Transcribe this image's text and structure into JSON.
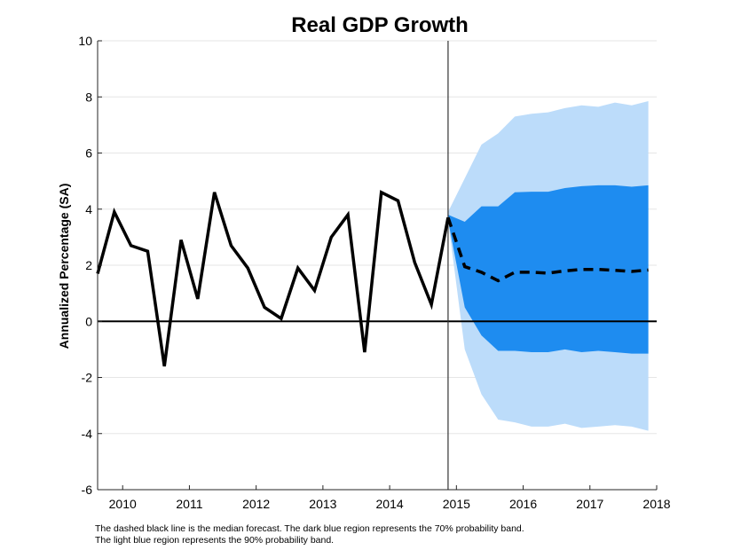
{
  "chart_data": {
    "type": "line",
    "title": "Real GDP Growth",
    "ylabel": "Annualized Percentage (SA)",
    "xlabel": "",
    "ylim": [
      -6,
      10
    ],
    "xlim": [
      2009.625,
      2018
    ],
    "y_ticks": [
      -6,
      -4,
      -2,
      0,
      2,
      4,
      6,
      8,
      10
    ],
    "x_ticks": [
      2010,
      2011,
      2012,
      2013,
      2014,
      2015,
      2016,
      2017,
      2018
    ],
    "grid": true,
    "forecast_start": 2014.875,
    "zero_line": 0,
    "colors": {
      "actual": "#000000",
      "median": "#000000",
      "band70": "#1e8cf0",
      "band90": "#bcdcfa",
      "grid": "#e6e6e6",
      "axis": "#262626"
    },
    "series": [
      {
        "key": "actual",
        "style": "solid",
        "x": [
          2009.625,
          2009.875,
          2010.125,
          2010.375,
          2010.625,
          2010.875,
          2011.125,
          2011.375,
          2011.625,
          2011.875,
          2012.125,
          2012.375,
          2012.625,
          2012.875,
          2013.125,
          2013.375,
          2013.625,
          2013.875,
          2014.125,
          2014.375,
          2014.625,
          2014.875
        ],
        "values": [
          1.7,
          3.9,
          2.7,
          2.5,
          -1.6,
          2.9,
          0.8,
          4.6,
          2.7,
          1.9,
          0.5,
          0.1,
          1.9,
          1.1,
          3.0,
          3.8,
          -1.1,
          4.6,
          4.3,
          2.1,
          0.6,
          3.7
        ]
      },
      {
        "key": "median",
        "style": "dashed",
        "x": [
          2014.875,
          2015.125,
          2015.375,
          2015.625,
          2015.875,
          2016.125,
          2016.375,
          2016.625,
          2016.875,
          2017.125,
          2017.375,
          2017.625,
          2017.875
        ],
        "values": [
          3.7,
          1.95,
          1.75,
          1.45,
          1.75,
          1.75,
          1.72,
          1.8,
          1.85,
          1.85,
          1.82,
          1.78,
          1.83
        ]
      }
    ],
    "bands": [
      {
        "key": "band90",
        "x": [
          2014.875,
          2015.125,
          2015.375,
          2015.625,
          2015.875,
          2016.125,
          2016.375,
          2016.625,
          2016.875,
          2017.125,
          2017.375,
          2017.625,
          2017.875
        ],
        "upper": [
          3.9,
          5.1,
          6.3,
          6.7,
          7.3,
          7.4,
          7.45,
          7.6,
          7.7,
          7.65,
          7.8,
          7.7,
          7.85
        ],
        "lower": [
          3.6,
          -1.0,
          -2.6,
          -3.5,
          -3.6,
          -3.75,
          -3.75,
          -3.65,
          -3.8,
          -3.75,
          -3.7,
          -3.75,
          -3.9
        ]
      },
      {
        "key": "band70",
        "x": [
          2014.875,
          2015.125,
          2015.375,
          2015.625,
          2015.875,
          2016.125,
          2016.375,
          2016.625,
          2016.875,
          2017.125,
          2017.375,
          2017.625,
          2017.875
        ],
        "upper": [
          3.8,
          3.55,
          4.1,
          4.1,
          4.6,
          4.62,
          4.62,
          4.75,
          4.82,
          4.85,
          4.85,
          4.8,
          4.85
        ],
        "lower": [
          3.6,
          0.5,
          -0.5,
          -1.05,
          -1.05,
          -1.1,
          -1.1,
          -1.0,
          -1.1,
          -1.05,
          -1.1,
          -1.15,
          -1.15
        ]
      }
    ]
  },
  "caption": {
    "line1": "The dashed black line is the median forecast. The dark blue region represents the 70% probability band.",
    "line2": "The light blue region represents the 90% probability band."
  }
}
